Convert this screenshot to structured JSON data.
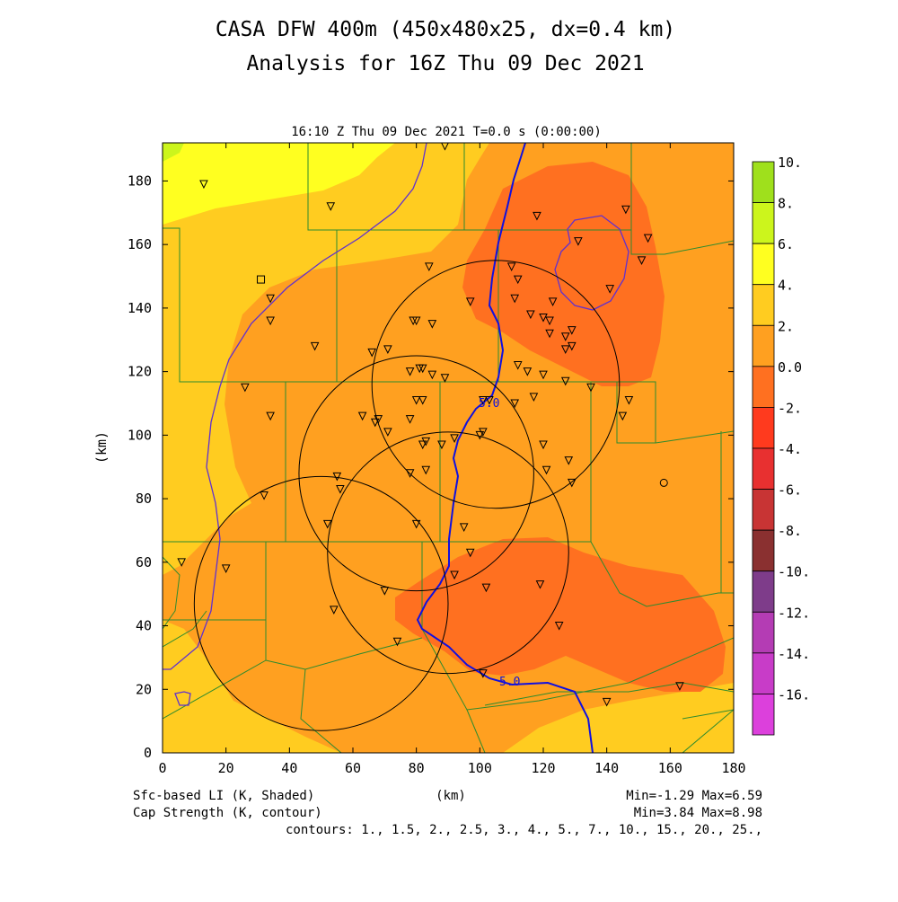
{
  "header": {
    "title_line1": "CASA DFW 400m (450x480x25, dx=0.4 km)",
    "title_line2": "Analysis for 16Z Thu 09 Dec 2021",
    "valid_time": "16:10 Z Thu 09 Dec 2021   T=0.0 s (0:00:00)"
  },
  "axes": {
    "xlabel": "(km)",
    "ylabel": "(km)",
    "xlim": [
      0,
      180
    ],
    "ylim": [
      0,
      192
    ],
    "xticks": [
      "0",
      "20",
      "40",
      "60",
      "80",
      "100",
      "120",
      "140",
      "160",
      "180"
    ],
    "yticks": [
      "0",
      "20",
      "40",
      "60",
      "80",
      "100",
      "120",
      "140",
      "160",
      "180"
    ]
  },
  "colorbar": {
    "labels": [
      "10.",
      "8.",
      "6.",
      "4.",
      "2.",
      "0.0",
      "-2.",
      "-4.",
      "-6.",
      "-8.",
      "-10.",
      "-12.",
      "-14.",
      "-16."
    ],
    "colors": [
      "#9fe01c",
      "#ccf51c",
      "#ffff20",
      "#ffcc20",
      "#ffa020",
      "#ff7020",
      "#ff3a1e",
      "#e83030",
      "#c83434",
      "#8a3030",
      "#7e3c8a",
      "#b43cb4",
      "#c83cc8",
      "#dc40dc"
    ]
  },
  "contour_labels": [
    "5.0",
    "5.0"
  ],
  "footer": {
    "left_line1": "Sfc-based LI (K, Shaded)",
    "left_line2": "Cap Strength (K, contour)",
    "center": "(km)",
    "right_line1": "Min=-1.29 Max=6.59",
    "right_line2": "Min=3.84 Max=8.98",
    "contours": "contours: 1., 1.5, 2., 2.5, 3., 4., 5., 7., 10., 15., 20., 25.,"
  },
  "chart_data": {
    "type": "heatmap",
    "title": "CASA DFW 400m (450x480x25, dx=0.4 km)",
    "subtitle": "Analysis for 16Z Thu 09 Dec 2021",
    "xlabel": "(km)",
    "ylabel": "(km)",
    "xlim": [
      0,
      180
    ],
    "ylim": [
      0,
      192
    ],
    "shaded_field": "Sfc-based LI (K, Shaded)",
    "contour_field": "Cap Strength (K, contour)",
    "shaded_min": -1.29,
    "shaded_max": 6.59,
    "contour_min": 3.84,
    "contour_max": 8.98,
    "contour_levels": [
      1,
      1.5,
      2,
      2.5,
      3,
      4,
      5,
      7,
      10,
      15,
      20,
      25
    ],
    "radar_rings": [
      {
        "cx": 80,
        "cy": 88,
        "r": 37
      },
      {
        "cx": 105,
        "cy": 116,
        "r": 39
      },
      {
        "cx": 90,
        "cy": 63,
        "r": 38
      },
      {
        "cx": 50,
        "cy": 47,
        "r": 40
      }
    ],
    "stations": [
      [
        13,
        179
      ],
      [
        53,
        172
      ],
      [
        118,
        169
      ],
      [
        146,
        171
      ],
      [
        153,
        162
      ],
      [
        131,
        161
      ],
      [
        151,
        155
      ],
      [
        84,
        153
      ],
      [
        110,
        153
      ],
      [
        112,
        149
      ],
      [
        141,
        146
      ],
      [
        34,
        143
      ],
      [
        97,
        142
      ],
      [
        111,
        143
      ],
      [
        123,
        142
      ],
      [
        34,
        136
      ],
      [
        79,
        136
      ],
      [
        80,
        136
      ],
      [
        85,
        135
      ],
      [
        116,
        138
      ],
      [
        120,
        137
      ],
      [
        122,
        136
      ],
      [
        122,
        132
      ],
      [
        127,
        131
      ],
      [
        129,
        133
      ],
      [
        48,
        128
      ],
      [
        66,
        126
      ],
      [
        71,
        127
      ],
      [
        127,
        127
      ],
      [
        129,
        128
      ],
      [
        78,
        120
      ],
      [
        81,
        121
      ],
      [
        82,
        121
      ],
      [
        85,
        119
      ],
      [
        89,
        118
      ],
      [
        112,
        122
      ],
      [
        115,
        120
      ],
      [
        120,
        119
      ],
      [
        127,
        117
      ],
      [
        135,
        115
      ],
      [
        26,
        115
      ],
      [
        80,
        111
      ],
      [
        82,
        111
      ],
      [
        101,
        111
      ],
      [
        103,
        111
      ],
      [
        111,
        110
      ],
      [
        117,
        112
      ],
      [
        147,
        111
      ],
      [
        34,
        106
      ],
      [
        63,
        106
      ],
      [
        67,
        104
      ],
      [
        68,
        105
      ],
      [
        71,
        101
      ],
      [
        78,
        105
      ],
      [
        100,
        100
      ],
      [
        101,
        101
      ],
      [
        82,
        97
      ],
      [
        83,
        98
      ],
      [
        88,
        97
      ],
      [
        92,
        99
      ],
      [
        120,
        97
      ],
      [
        128,
        92
      ],
      [
        121,
        89
      ],
      [
        78,
        88
      ],
      [
        83,
        89
      ],
      [
        129,
        85
      ],
      [
        55,
        87
      ],
      [
        56,
        83
      ],
      [
        32,
        81
      ],
      [
        52,
        72
      ],
      [
        80,
        72
      ],
      [
        95,
        71
      ],
      [
        97,
        63
      ],
      [
        6,
        60
      ],
      [
        20,
        58
      ],
      [
        102,
        52
      ],
      [
        119,
        53
      ],
      [
        92,
        56
      ],
      [
        70,
        51
      ],
      [
        54,
        45
      ],
      [
        125,
        40
      ],
      [
        74,
        35
      ],
      [
        101,
        25
      ],
      [
        140,
        16
      ],
      [
        163,
        21
      ],
      [
        89,
        191
      ],
      [
        145,
        106
      ]
    ],
    "square_marker": [
      31,
      149
    ],
    "circle_marker": [
      158,
      85
    ]
  }
}
